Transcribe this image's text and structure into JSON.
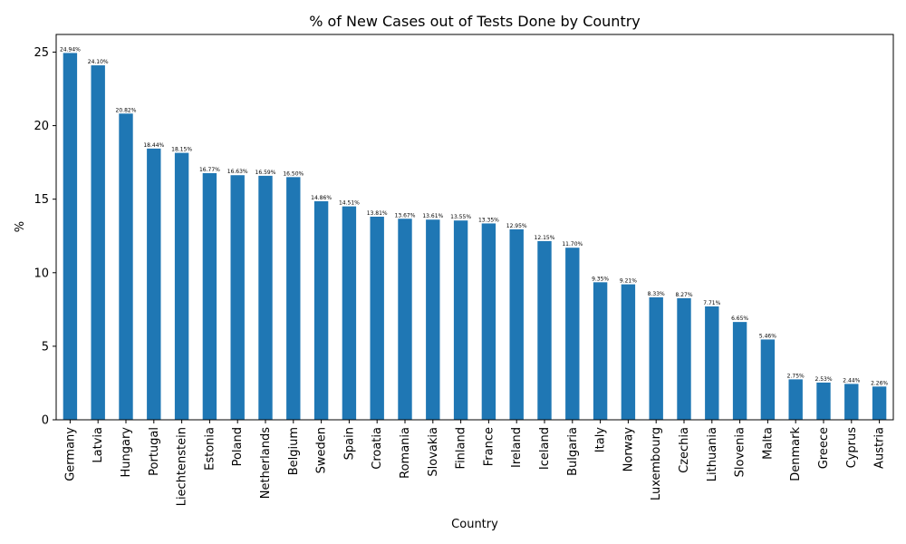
{
  "chart_data": {
    "type": "bar",
    "title": "% of New Cases out of Tests Done by Country",
    "xlabel": "Country",
    "ylabel": "%",
    "ylim": [
      0,
      26.2
    ],
    "yticks": [
      0,
      5,
      10,
      15,
      20,
      25
    ],
    "grid": false,
    "color": "#1f77b4",
    "categories": [
      "Germany",
      "Latvia",
      "Hungary",
      "Portugal",
      "Liechtenstein",
      "Estonia",
      "Poland",
      "Netherlands",
      "Belgium",
      "Sweden",
      "Spain",
      "Croatia",
      "Romania",
      "Slovakia",
      "Finland",
      "France",
      "Ireland",
      "Iceland",
      "Bulgaria",
      "Italy",
      "Norway",
      "Luxembourg",
      "Czechia",
      "Lithuania",
      "Slovenia",
      "Malta",
      "Denmark",
      "Greece",
      "Cyprus",
      "Austria"
    ],
    "values": [
      24.94,
      24.1,
      20.82,
      18.44,
      18.15,
      16.77,
      16.63,
      16.59,
      16.5,
      14.86,
      14.51,
      13.81,
      13.67,
      13.61,
      13.55,
      13.35,
      12.95,
      12.15,
      11.7,
      9.35,
      9.21,
      8.33,
      8.27,
      7.71,
      6.65,
      5.46,
      2.75,
      2.53,
      2.44,
      2.26
    ],
    "data_labels": [
      "24.94%",
      "24.10%",
      "20.82%",
      "18.44%",
      "18.15%",
      "16.77%",
      "16.63%",
      "16.59%",
      "16.50%",
      "14.86%",
      "14.51%",
      "13.81%",
      "13.67%",
      "13.61%",
      "13.55%",
      "13.35%",
      "12.95%",
      "12.15%",
      "11.70%",
      "9.35%",
      "9.21%",
      "8.33%",
      "8.27%",
      "7.71%",
      "6.65%",
      "5.46%",
      "2.75%",
      "2.53%",
      "2.44%",
      "2.26%"
    ]
  }
}
